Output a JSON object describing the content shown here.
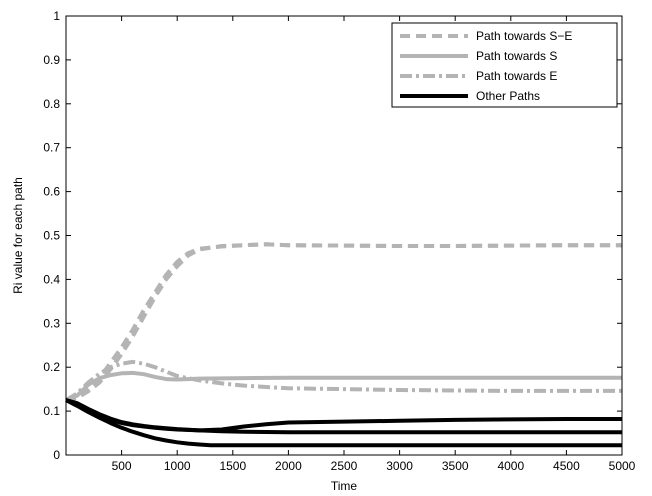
{
  "chart_data": {
    "type": "line",
    "xlabel": "Time",
    "ylabel": "Ri value for each path",
    "xlim": [
      0,
      5000
    ],
    "ylim": [
      0,
      1
    ],
    "x_ticks": [
      500,
      1000,
      1500,
      2000,
      2500,
      3000,
      3500,
      4000,
      4500,
      5000
    ],
    "y_ticks": [
      0,
      0.1,
      0.2,
      0.3,
      0.4,
      0.5,
      0.6,
      0.7,
      0.8,
      0.9,
      1
    ],
    "grid": false,
    "legend_position": "top-right",
    "legend": [
      {
        "label": "Path towards S−E",
        "style": "dashed",
        "color": "#b4b4b4"
      },
      {
        "label": "Path towards S",
        "style": "solid",
        "color": "#b4b4b4"
      },
      {
        "label": "Path towards E",
        "style": "dashdot",
        "color": "#b4b4b4"
      },
      {
        "label": "Other Paths",
        "style": "solid",
        "color": "#000000"
      }
    ],
    "series": [
      {
        "group": "Path towards S−E",
        "style": "dashed",
        "color": "#b4b4b4",
        "x": [
          0,
          100,
          200,
          300,
          400,
          500,
          600,
          700,
          800,
          900,
          1000,
          1100,
          1200,
          1400,
          1600,
          1800,
          2000,
          2500,
          3000,
          3500,
          4000,
          4500,
          5000
        ],
        "y": [
          0.125,
          0.13,
          0.15,
          0.175,
          0.21,
          0.245,
          0.285,
          0.33,
          0.37,
          0.41,
          0.44,
          0.46,
          0.47,
          0.475,
          0.478,
          0.48,
          0.478,
          0.477,
          0.476,
          0.476,
          0.477,
          0.478,
          0.478
        ]
      },
      {
        "group": "Path towards S−E",
        "style": "dashed",
        "color": "#b4b4b4",
        "x": [
          0,
          100,
          200,
          300,
          400,
          500,
          600,
          700,
          800,
          900,
          1000,
          1100,
          1200,
          1400,
          1600,
          1800,
          2000,
          2500,
          3000,
          3500,
          4000,
          4500,
          5000
        ],
        "y": [
          0.125,
          0.13,
          0.145,
          0.165,
          0.195,
          0.23,
          0.27,
          0.315,
          0.36,
          0.4,
          0.43,
          0.455,
          0.468,
          0.476,
          0.478,
          0.48,
          0.478,
          0.477,
          0.476,
          0.476,
          0.477,
          0.478,
          0.478
        ]
      },
      {
        "group": "Path towards S",
        "style": "solid",
        "color": "#b4b4b4",
        "x": [
          0,
          100,
          200,
          300,
          400,
          500,
          600,
          700,
          800,
          900,
          1000,
          1200,
          1500,
          2000,
          2500,
          3000,
          3500,
          4000,
          4500,
          5000
        ],
        "y": [
          0.125,
          0.135,
          0.16,
          0.175,
          0.182,
          0.186,
          0.187,
          0.184,
          0.178,
          0.173,
          0.172,
          0.174,
          0.175,
          0.176,
          0.176,
          0.176,
          0.176,
          0.176,
          0.176,
          0.176
        ]
      },
      {
        "group": "Path towards E",
        "style": "dashdot",
        "color": "#b4b4b4",
        "x": [
          0,
          100,
          200,
          300,
          400,
          500,
          600,
          700,
          800,
          900,
          1000,
          1200,
          1400,
          1600,
          1800,
          2000,
          2500,
          3000,
          3500,
          4000,
          4500,
          5000
        ],
        "y": [
          0.125,
          0.14,
          0.165,
          0.185,
          0.2,
          0.208,
          0.212,
          0.208,
          0.2,
          0.19,
          0.18,
          0.17,
          0.163,
          0.158,
          0.155,
          0.152,
          0.15,
          0.148,
          0.147,
          0.146,
          0.146,
          0.146
        ]
      },
      {
        "group": "Other Paths",
        "style": "solid",
        "color": "#000000",
        "x": [
          0,
          100,
          200,
          300,
          400,
          500,
          600,
          700,
          800,
          900,
          1000,
          1200,
          1400,
          1600,
          1800,
          2000,
          2500,
          3000,
          3500,
          4000,
          4500,
          5000
        ],
        "y": [
          0.125,
          0.115,
          0.1,
          0.088,
          0.08,
          0.073,
          0.068,
          0.065,
          0.062,
          0.06,
          0.058,
          0.056,
          0.058,
          0.065,
          0.07,
          0.074,
          0.076,
          0.078,
          0.08,
          0.081,
          0.082,
          0.082
        ]
      },
      {
        "group": "Other Paths",
        "style": "solid",
        "color": "#000000",
        "x": [
          0,
          100,
          200,
          300,
          400,
          500,
          600,
          700,
          800,
          900,
          1000,
          1200,
          1400,
          1600,
          2000,
          2500,
          3000,
          3500,
          4000,
          4500,
          5000
        ],
        "y": [
          0.125,
          0.118,
          0.105,
          0.093,
          0.083,
          0.075,
          0.07,
          0.066,
          0.063,
          0.061,
          0.059,
          0.056,
          0.054,
          0.053,
          0.052,
          0.052,
          0.052,
          0.052,
          0.052,
          0.052,
          0.052
        ]
      },
      {
        "group": "Other Paths",
        "style": "solid",
        "color": "#000000",
        "x": [
          0,
          100,
          200,
          300,
          400,
          500,
          600,
          700,
          800,
          900,
          1000,
          1100,
          1200,
          1300,
          1500,
          2000,
          2500,
          3000,
          3500,
          4000,
          4500,
          5000
        ],
        "y": [
          0.125,
          0.112,
          0.098,
          0.085,
          0.073,
          0.062,
          0.053,
          0.045,
          0.038,
          0.033,
          0.029,
          0.026,
          0.024,
          0.022,
          0.022,
          0.022,
          0.022,
          0.022,
          0.022,
          0.022,
          0.022,
          0.022
        ]
      }
    ]
  }
}
